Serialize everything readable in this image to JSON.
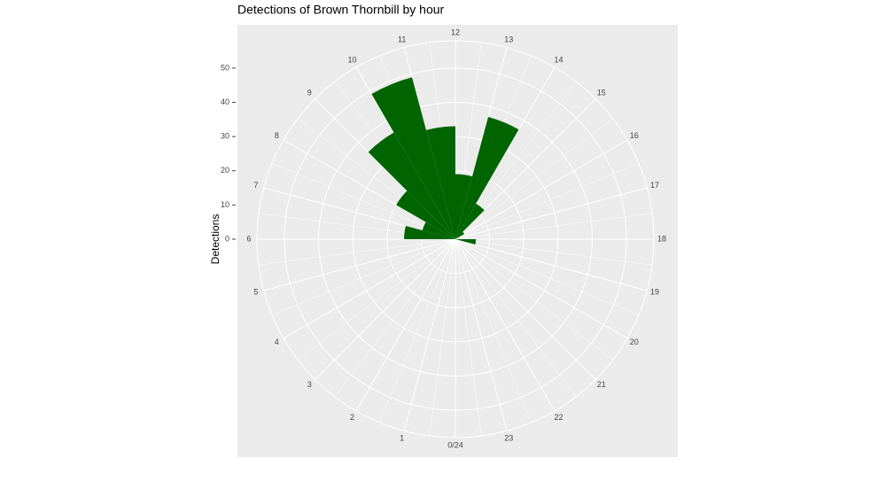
{
  "chart_data": {
    "type": "polar-bar",
    "title": "Detections of Brown Thornbill by hour",
    "y_label": "Detections",
    "categories": [
      {
        "value": 0,
        "label": "0/24"
      },
      1,
      2,
      3,
      4,
      5,
      6,
      7,
      8,
      9,
      10,
      11,
      12,
      13,
      14,
      15,
      16,
      17,
      18,
      19,
      20,
      21,
      22,
      23
    ],
    "values": [
      0,
      0,
      0,
      0,
      0,
      0,
      15,
      10,
      20,
      36,
      49,
      33,
      19,
      37,
      12,
      3,
      0,
      0,
      6,
      0,
      0,
      0,
      0,
      0
    ],
    "color": "#006400",
    "ylim": [
      0,
      58
    ],
    "yticks": [
      0,
      10,
      20,
      30,
      40,
      50
    ],
    "grid": true
  }
}
